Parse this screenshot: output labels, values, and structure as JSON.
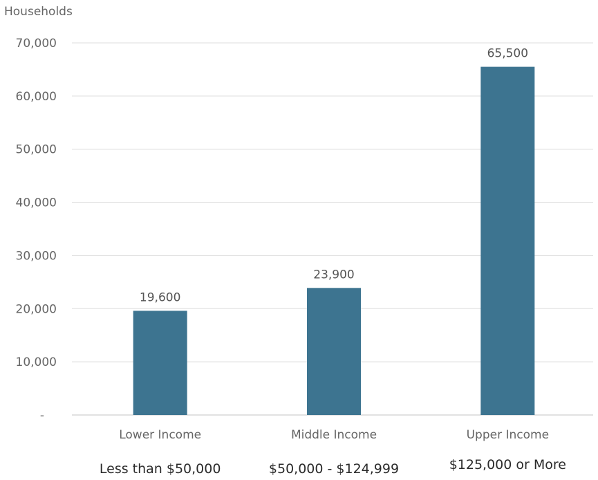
{
  "chart_data": {
    "type": "bar",
    "title": "",
    "ylabel": "Households",
    "xlabel": "",
    "ylim": [
      0,
      70000
    ],
    "yticks": [
      {
        "value": 0,
        "label": "-"
      },
      {
        "value": 10000,
        "label": "10,000"
      },
      {
        "value": 20000,
        "label": "20,000"
      },
      {
        "value": 30000,
        "label": "30,000"
      },
      {
        "value": 40000,
        "label": "40,000"
      },
      {
        "value": 50000,
        "label": "50,000"
      },
      {
        "value": 60000,
        "label": "60,000"
      },
      {
        "value": 70000,
        "label": "70,000"
      }
    ],
    "categories": [
      "Lower Income",
      "Middle Income",
      "Upper Income"
    ],
    "category_ranges": [
      "Less than $50,000",
      "$50,000 - $124,999",
      "$125,000 or More"
    ],
    "values": [
      19600,
      23900,
      65500
    ],
    "data_labels": [
      "19,600",
      "23,900",
      "65,500"
    ],
    "grid": true,
    "bar_color": "#3d7490"
  }
}
